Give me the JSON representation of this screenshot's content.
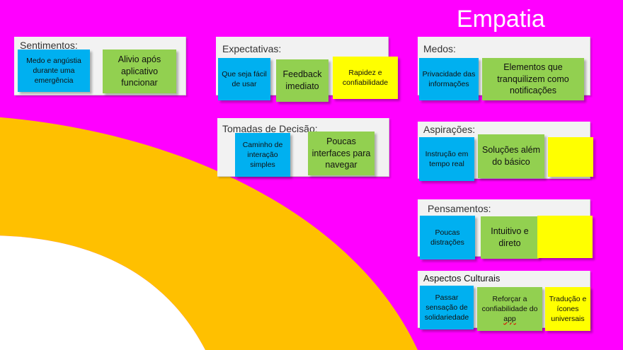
{
  "title": "Empatia",
  "colors": {
    "background": "#ff00ff",
    "arc_orange": "#ffc000",
    "arc_inner": "#ffffff",
    "note_blue": "#00b0f0",
    "note_green": "#92d050",
    "note_yellow": "#ffff00",
    "panel": "#f2f2f2"
  },
  "sections": {
    "sentimentos": {
      "label": "Sentimentos:",
      "notes": [
        "Medo e angústia durante uma emergência",
        "Alivio após aplicativo funcionar"
      ]
    },
    "expectativas": {
      "label": "Expectativas:",
      "notes": [
        "Que seja fácil de usar",
        "Feedback imediato",
        "Rapidez e confiabilidade"
      ]
    },
    "tomadas_decisao": {
      "label": "Tomadas de Decisão:",
      "notes": [
        "Caminho de interação simples",
        "Poucas interfaces para navegar"
      ]
    },
    "medos": {
      "label": "Medos:",
      "notes": [
        "Privacidade das informações",
        "Elementos que tranquilizem como notificações"
      ]
    },
    "aspiracoes": {
      "label": "Aspirações:",
      "notes": [
        "Instrução em tempo real",
        "Soluções além do básico",
        ""
      ]
    },
    "pensamentos": {
      "label": "Pensamentos:",
      "notes": [
        "Poucas distrações",
        "Intuitivo e direto",
        ""
      ]
    },
    "aspectos_culturais": {
      "label": "Aspectos Culturais",
      "notes": [
        "Passar sensação de solidariedade",
        "Reforçar a confiabilidade do",
        "app",
        "Tradução e ícones universais"
      ]
    }
  }
}
